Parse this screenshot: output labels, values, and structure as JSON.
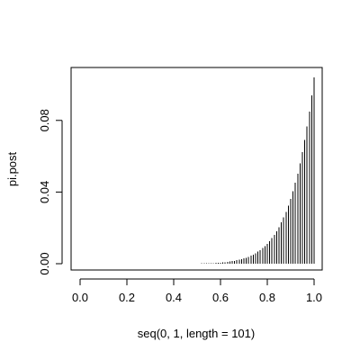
{
  "chart_data": {
    "type": "histogram-like vertical lines",
    "xlabel": "seq(0, 1, length = 101)",
    "ylabel": "pi.post",
    "xlim": [
      0,
      1
    ],
    "ylim": [
      0,
      0.104
    ],
    "x_ticks": [
      "0.0",
      "0.2",
      "0.4",
      "0.6",
      "0.8",
      "1.0"
    ],
    "y_ticks": [
      "0.00",
      "0.04",
      "0.08"
    ],
    "x_tick_values": [
      0,
      0.2,
      0.4,
      0.6,
      0.8,
      1.0
    ],
    "y_tick_values": [
      0,
      0.04,
      0.08
    ],
    "x_start": 0,
    "x_end": 1,
    "x_count": 101,
    "shape_exponent": 10,
    "peak_value": 0.104
  }
}
